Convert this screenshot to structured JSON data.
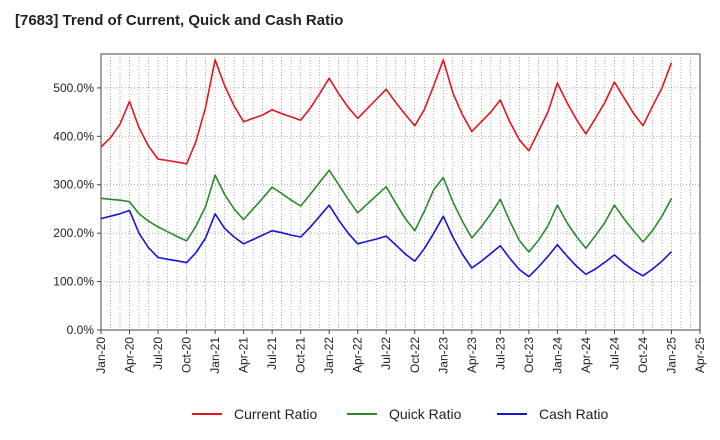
{
  "chart_data": {
    "type": "line",
    "title": "[7683]  Trend of Current, Quick and Cash Ratio",
    "xlabel": "",
    "ylabel": "",
    "ylim": [
      0,
      570
    ],
    "yticks": [
      0,
      100,
      200,
      300,
      400,
      500
    ],
    "ytick_labels": [
      "0.0%",
      "100.0%",
      "200.0%",
      "300.0%",
      "400.0%",
      "500.0%"
    ],
    "x_tick_labels": [
      "Jan-20",
      "Apr-20",
      "Jul-20",
      "Oct-20",
      "Jan-21",
      "Apr-21",
      "Jul-21",
      "Oct-21",
      "Jan-22",
      "Apr-22",
      "Jul-22",
      "Oct-22",
      "Jan-23",
      "Apr-23",
      "Jul-23",
      "Oct-23",
      "Jan-24",
      "Apr-24",
      "Jul-24",
      "Oct-24",
      "Jan-25",
      "Apr-25"
    ],
    "x_start": "Jan-20",
    "x_count_months": 64,
    "grid": true,
    "legend_position": "bottom",
    "series": [
      {
        "name": "Current Ratio",
        "color": "#e8141b",
        "points": [
          [
            0,
            378
          ],
          [
            1,
            397
          ],
          [
            2,
            425
          ],
          [
            3,
            472
          ],
          [
            4,
            418
          ],
          [
            5,
            380
          ],
          [
            6,
            353
          ],
          [
            7,
            350
          ],
          [
            8,
            347
          ],
          [
            9,
            343
          ],
          [
            10,
            390
          ],
          [
            11,
            460
          ],
          [
            12,
            558
          ],
          [
            13,
            505
          ],
          [
            14,
            463
          ],
          [
            15,
            430
          ],
          [
            16,
            437
          ],
          [
            17,
            444
          ],
          [
            18,
            455
          ],
          [
            19,
            447
          ],
          [
            20,
            440
          ],
          [
            21,
            433
          ],
          [
            22,
            458
          ],
          [
            23,
            488
          ],
          [
            24,
            520
          ],
          [
            25,
            488
          ],
          [
            26,
            460
          ],
          [
            27,
            437
          ],
          [
            28,
            457
          ],
          [
            29,
            477
          ],
          [
            30,
            497
          ],
          [
            31,
            470
          ],
          [
            32,
            445
          ],
          [
            33,
            422
          ],
          [
            34,
            455
          ],
          [
            35,
            505
          ],
          [
            36,
            558
          ],
          [
            37,
            490
          ],
          [
            38,
            445
          ],
          [
            39,
            410
          ],
          [
            40,
            430
          ],
          [
            41,
            450
          ],
          [
            42,
            475
          ],
          [
            43,
            430
          ],
          [
            44,
            393
          ],
          [
            45,
            370
          ],
          [
            46,
            410
          ],
          [
            47,
            450
          ],
          [
            48,
            510
          ],
          [
            49,
            470
          ],
          [
            50,
            435
          ],
          [
            51,
            405
          ],
          [
            52,
            437
          ],
          [
            53,
            470
          ],
          [
            54,
            512
          ],
          [
            55,
            480
          ],
          [
            56,
            448
          ],
          [
            57,
            422
          ],
          [
            58,
            462
          ],
          [
            59,
            500
          ],
          [
            60,
            552
          ]
        ]
      },
      {
        "name": "Quick Ratio",
        "color": "#2a8a2a",
        "points": [
          [
            0,
            272
          ],
          [
            1,
            270
          ],
          [
            2,
            268
          ],
          [
            3,
            265
          ],
          [
            4,
            240
          ],
          [
            5,
            225
          ],
          [
            6,
            213
          ],
          [
            7,
            203
          ],
          [
            8,
            193
          ],
          [
            9,
            184
          ],
          [
            10,
            215
          ],
          [
            11,
            255
          ],
          [
            12,
            320
          ],
          [
            13,
            280
          ],
          [
            14,
            250
          ],
          [
            15,
            228
          ],
          [
            16,
            250
          ],
          [
            17,
            272
          ],
          [
            18,
            295
          ],
          [
            19,
            282
          ],
          [
            20,
            268
          ],
          [
            21,
            256
          ],
          [
            22,
            280
          ],
          [
            23,
            305
          ],
          [
            24,
            330
          ],
          [
            25,
            300
          ],
          [
            26,
            270
          ],
          [
            27,
            242
          ],
          [
            28,
            260
          ],
          [
            29,
            278
          ],
          [
            30,
            296
          ],
          [
            31,
            262
          ],
          [
            32,
            230
          ],
          [
            33,
            205
          ],
          [
            34,
            245
          ],
          [
            35,
            290
          ],
          [
            36,
            315
          ],
          [
            37,
            265
          ],
          [
            38,
            225
          ],
          [
            39,
            190
          ],
          [
            40,
            213
          ],
          [
            41,
            240
          ],
          [
            42,
            270
          ],
          [
            43,
            225
          ],
          [
            44,
            185
          ],
          [
            45,
            161
          ],
          [
            46,
            185
          ],
          [
            47,
            215
          ],
          [
            48,
            258
          ],
          [
            49,
            222
          ],
          [
            50,
            193
          ],
          [
            51,
            169
          ],
          [
            52,
            195
          ],
          [
            53,
            222
          ],
          [
            54,
            258
          ],
          [
            55,
            230
          ],
          [
            56,
            205
          ],
          [
            57,
            182
          ],
          [
            58,
            205
          ],
          [
            59,
            235
          ],
          [
            60,
            272
          ]
        ]
      },
      {
        "name": "Cash Ratio",
        "color": "#1515d8",
        "points": [
          [
            0,
            230
          ],
          [
            1,
            235
          ],
          [
            2,
            240
          ],
          [
            3,
            247
          ],
          [
            4,
            200
          ],
          [
            5,
            170
          ],
          [
            6,
            150
          ],
          [
            7,
            146
          ],
          [
            8,
            143
          ],
          [
            9,
            139
          ],
          [
            10,
            160
          ],
          [
            11,
            190
          ],
          [
            12,
            240
          ],
          [
            13,
            210
          ],
          [
            14,
            192
          ],
          [
            15,
            178
          ],
          [
            16,
            187
          ],
          [
            17,
            196
          ],
          [
            18,
            205
          ],
          [
            19,
            201
          ],
          [
            20,
            196
          ],
          [
            21,
            192
          ],
          [
            22,
            212
          ],
          [
            23,
            235
          ],
          [
            24,
            258
          ],
          [
            25,
            227
          ],
          [
            26,
            200
          ],
          [
            27,
            178
          ],
          [
            28,
            183
          ],
          [
            29,
            188
          ],
          [
            30,
            194
          ],
          [
            31,
            176
          ],
          [
            32,
            157
          ],
          [
            33,
            142
          ],
          [
            34,
            168
          ],
          [
            35,
            200
          ],
          [
            36,
            235
          ],
          [
            37,
            192
          ],
          [
            38,
            157
          ],
          [
            39,
            128
          ],
          [
            40,
            142
          ],
          [
            41,
            158
          ],
          [
            42,
            174
          ],
          [
            43,
            148
          ],
          [
            44,
            125
          ],
          [
            45,
            110
          ],
          [
            46,
            130
          ],
          [
            47,
            152
          ],
          [
            48,
            176
          ],
          [
            49,
            153
          ],
          [
            50,
            132
          ],
          [
            51,
            115
          ],
          [
            52,
            126
          ],
          [
            53,
            140
          ],
          [
            54,
            155
          ],
          [
            55,
            138
          ],
          [
            56,
            123
          ],
          [
            57,
            112
          ],
          [
            58,
            126
          ],
          [
            59,
            142
          ],
          [
            60,
            162
          ]
        ]
      }
    ]
  }
}
